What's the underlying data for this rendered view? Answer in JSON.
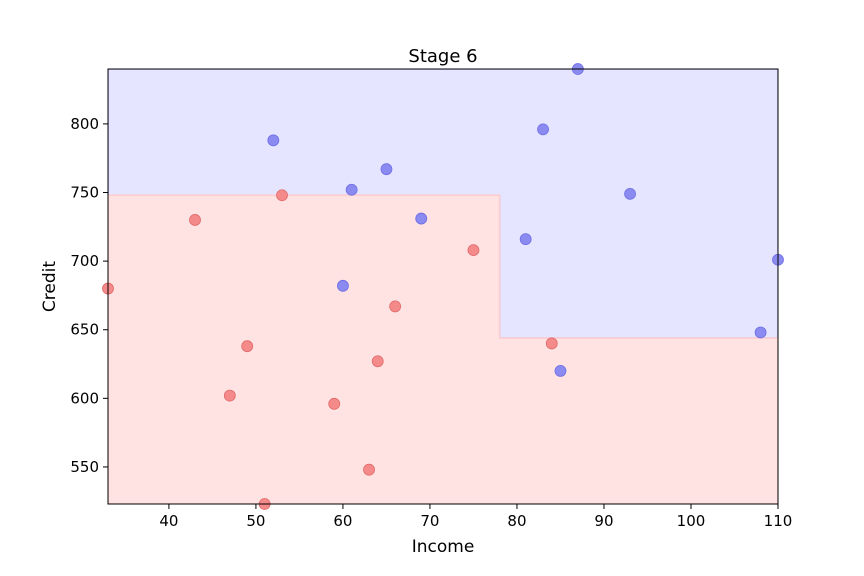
{
  "chart_data": {
    "type": "scatter",
    "title": "Stage 6",
    "xlabel": "Income",
    "ylabel": "Credit",
    "xlim": [
      33,
      110
    ],
    "ylim": [
      523,
      840
    ],
    "xticks": [
      40,
      50,
      60,
      70,
      80,
      90,
      100,
      110
    ],
    "yticks": [
      550,
      600,
      650,
      700,
      750,
      800
    ],
    "grid": false,
    "regions": [
      {
        "class": "blue",
        "color": "#e5e5ff",
        "edge": "#b3b3ff",
        "polygon": [
          [
            33,
            840
          ],
          [
            110,
            840
          ],
          [
            110,
            644
          ],
          [
            78,
            644
          ],
          [
            78,
            748
          ],
          [
            33,
            748
          ]
        ]
      },
      {
        "class": "red",
        "color": "#ffe2e2",
        "edge": "#ffcccc",
        "polygon": [
          [
            33,
            748
          ],
          [
            78,
            748
          ],
          [
            78,
            644
          ],
          [
            110,
            644
          ],
          [
            110,
            523
          ],
          [
            33,
            523
          ]
        ]
      }
    ],
    "series": [
      {
        "class": "blue",
        "color": "#8a8af0",
        "edge": "#6e6ee6",
        "points": [
          [
            87,
            840
          ],
          [
            52,
            788
          ],
          [
            83,
            796
          ],
          [
            65,
            767
          ],
          [
            61,
            752
          ],
          [
            93,
            749
          ],
          [
            69,
            731
          ],
          [
            81,
            716
          ],
          [
            110,
            701
          ],
          [
            60,
            682
          ],
          [
            108,
            648
          ],
          [
            85,
            620
          ]
        ]
      },
      {
        "class": "red",
        "color": "#f58a8a",
        "edge": "#e06a6a",
        "points": [
          [
            53,
            748
          ],
          [
            43,
            730
          ],
          [
            75,
            708
          ],
          [
            33,
            680
          ],
          [
            66,
            667
          ],
          [
            49,
            638
          ],
          [
            84,
            640
          ],
          [
            64,
            627
          ],
          [
            47,
            602
          ],
          [
            59,
            596
          ],
          [
            63,
            548
          ],
          [
            51,
            523
          ]
        ]
      }
    ]
  }
}
